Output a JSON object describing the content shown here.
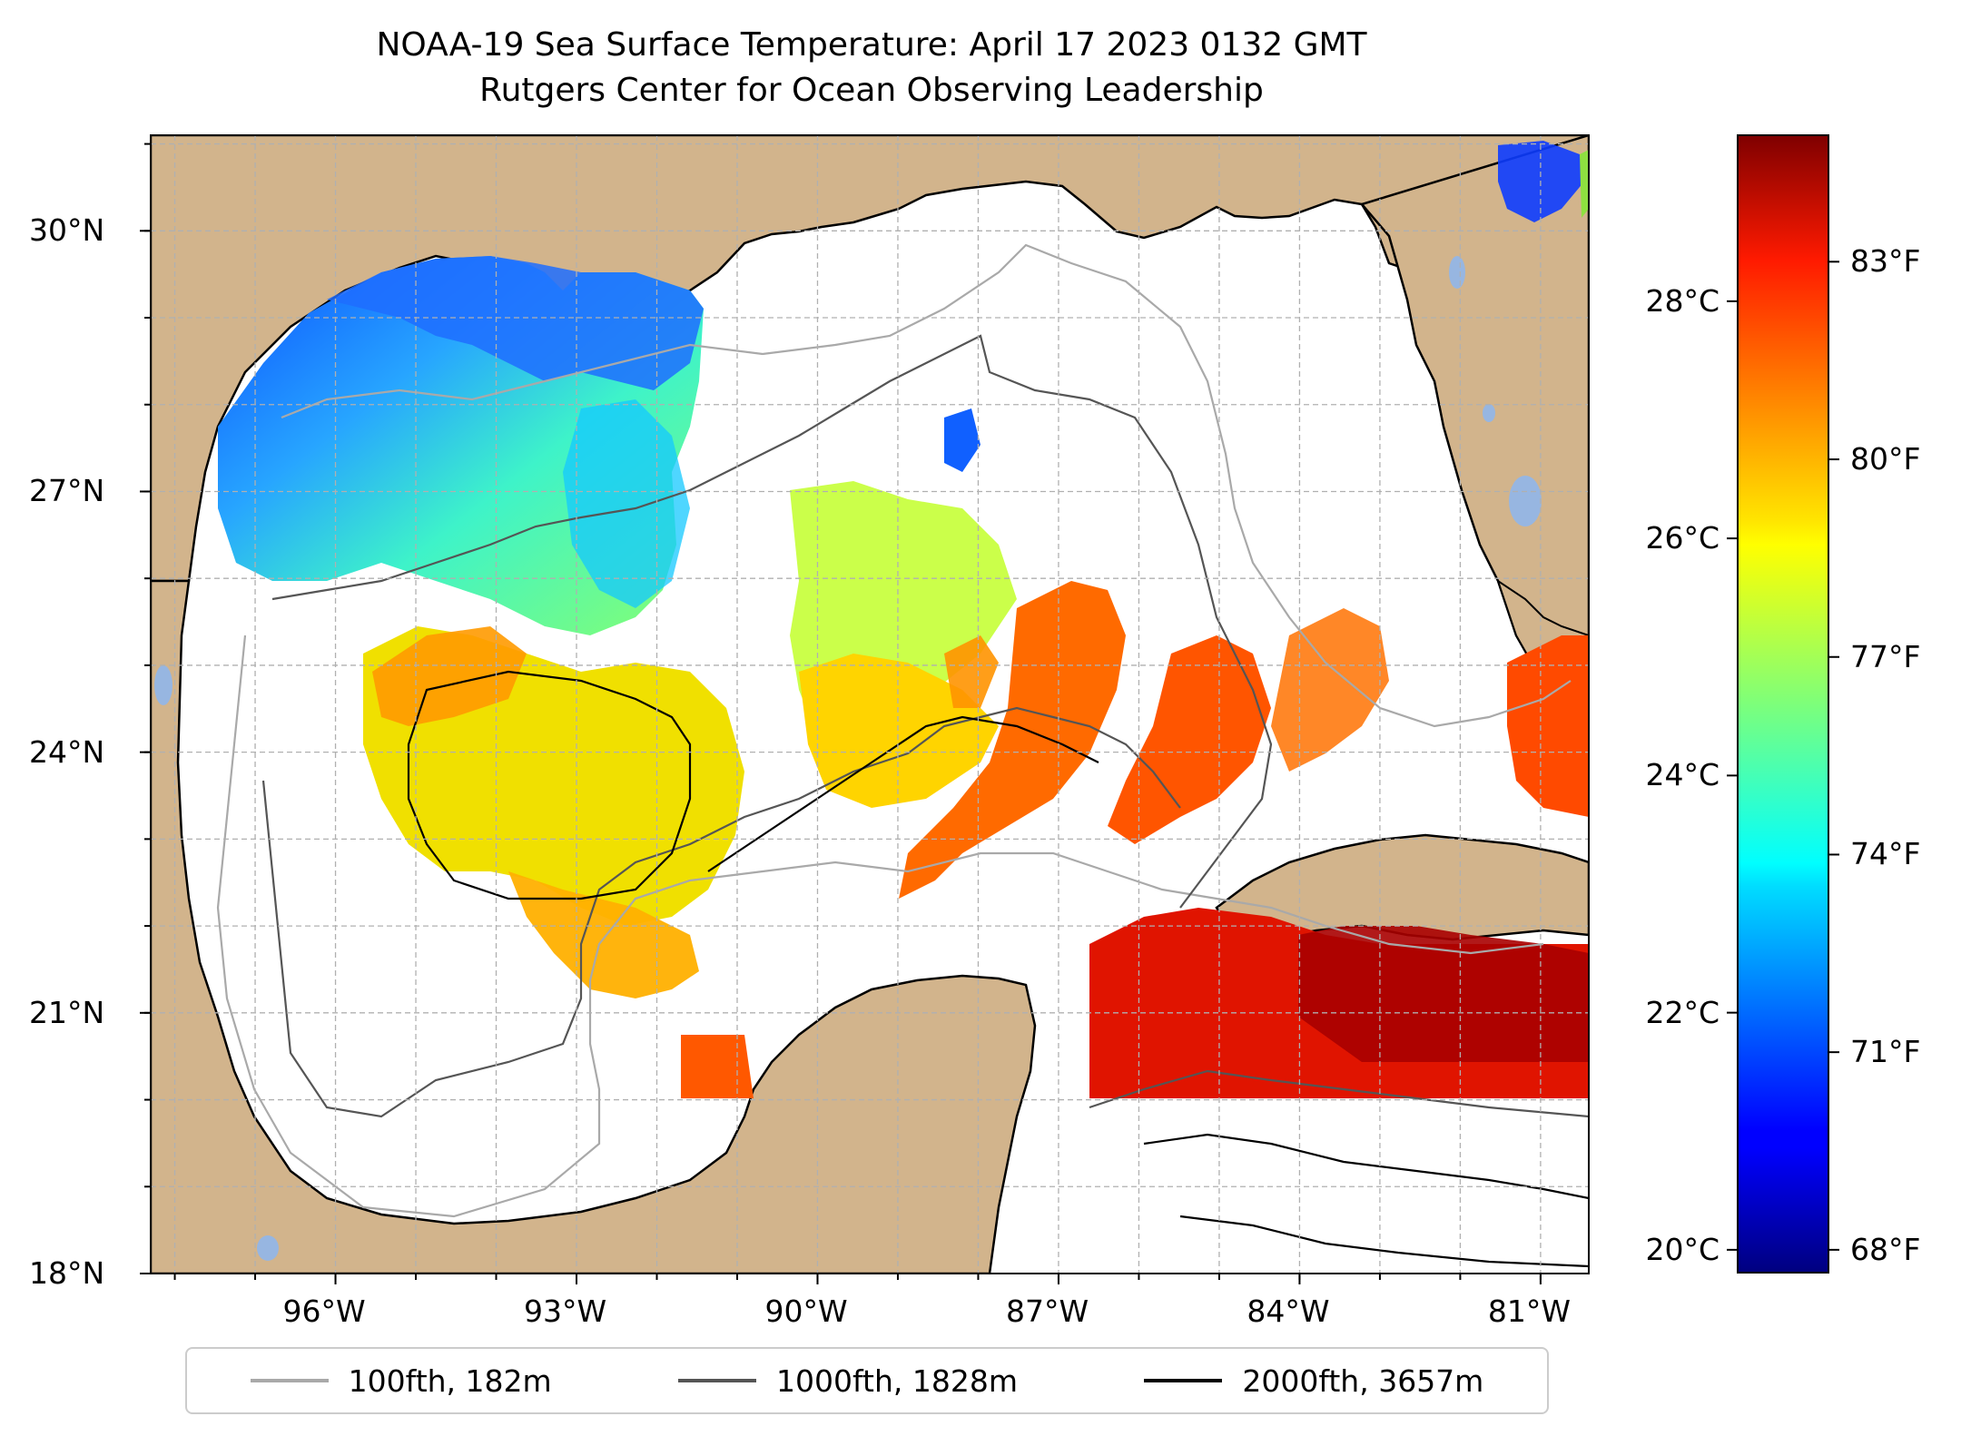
{
  "title": {
    "line1": "NOAA-19 Sea Surface Temperature: April 17 2023 0132 GMT",
    "line2": "Rutgers Center for Ocean Observing Leadership"
  },
  "map": {
    "lat_range": [
      18,
      31.1
    ],
    "lon_range": [
      -98.3,
      -80.4
    ],
    "lat_labels": [
      "30°N",
      "27°N",
      "24°N",
      "21°N",
      "18°N"
    ],
    "lat_values": [
      30,
      27,
      24,
      21,
      18
    ],
    "lon_labels": [
      "96°W",
      "93°W",
      "90°W",
      "87°W",
      "84°W",
      "81°W"
    ],
    "lon_values": [
      -96,
      -93,
      -90,
      -87,
      -84,
      -81
    ],
    "gridlines": true,
    "land_color": "#d2b48c",
    "lake_color": "#97b6e1"
  },
  "colorbar": {
    "colormap": "jet",
    "celsius_range": [
      19.8,
      29.4
    ],
    "celsius_labels": [
      "28°C",
      "26°C",
      "24°C",
      "22°C",
      "20°C"
    ],
    "celsius_values": [
      28,
      26,
      24,
      22,
      20
    ],
    "fahrenheit_labels": [
      "83°F",
      "80°F",
      "77°F",
      "74°F",
      "71°F",
      "68°F"
    ],
    "fahrenheit_values": [
      83,
      80,
      77,
      74,
      71,
      68
    ]
  },
  "legend": {
    "items": [
      {
        "label": "100fth, 182m",
        "color": "#a9a9a9"
      },
      {
        "label": "1000fth, 1828m",
        "color": "#555555"
      },
      {
        "label": "2000fth, 3657m",
        "color": "#000000"
      }
    ]
  }
}
